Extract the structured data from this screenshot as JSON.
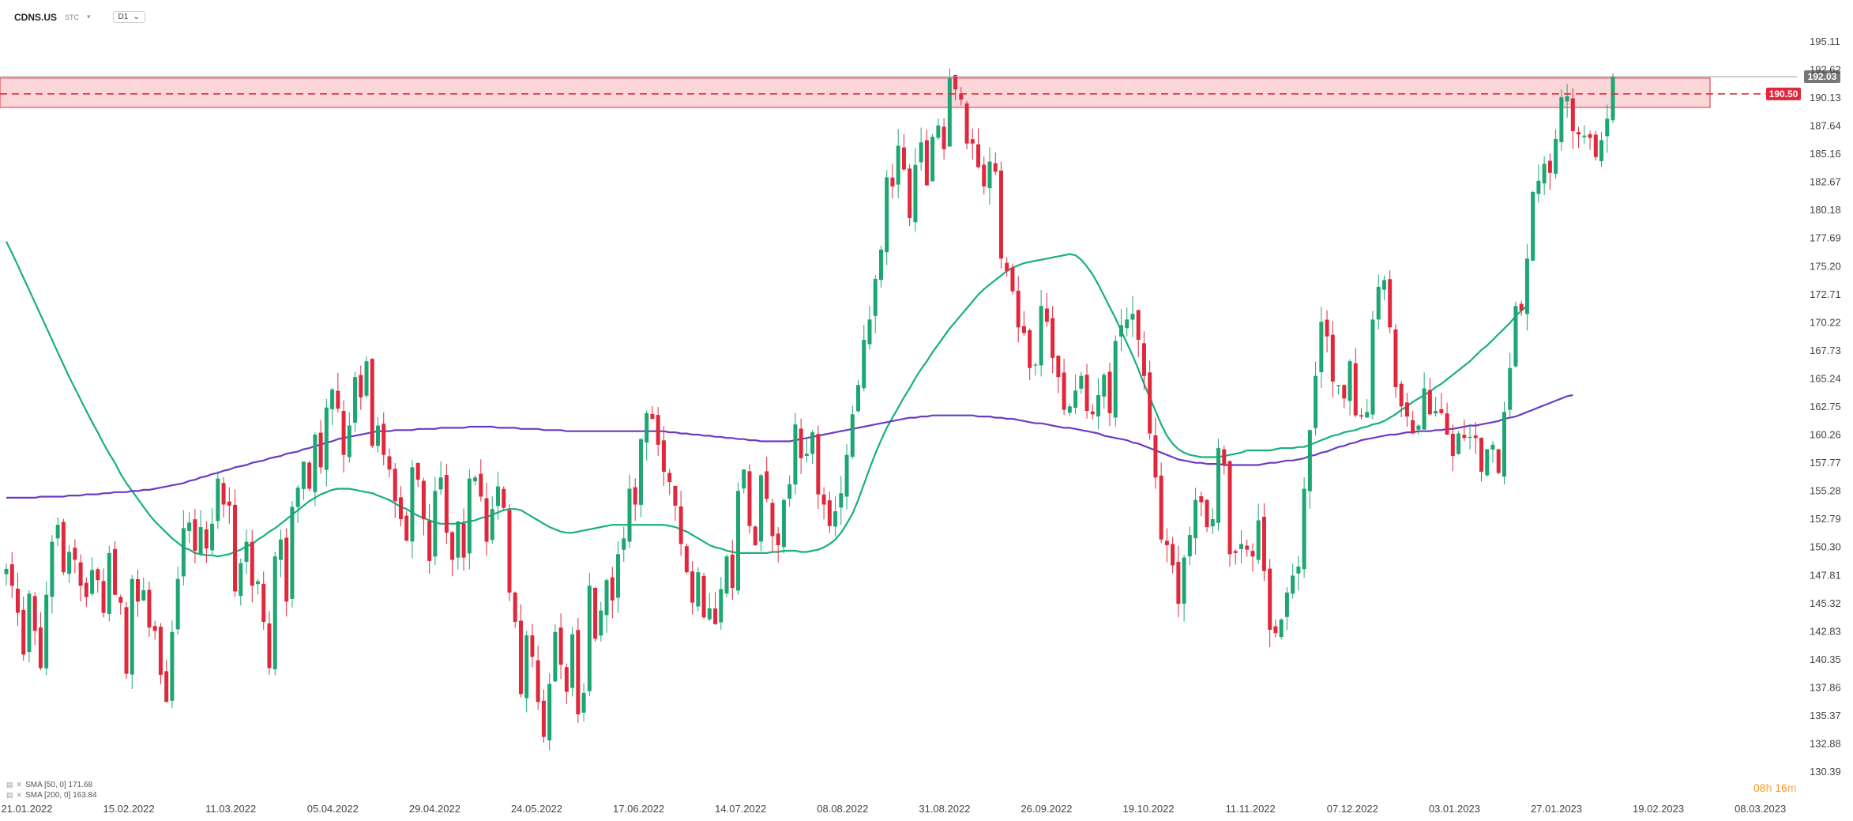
{
  "header": {
    "symbol": "CDNS.US",
    "exchange": "STC",
    "timeframe": "D1"
  },
  "legend": {
    "sma50": "SMA [50, 0] 171.68",
    "sma200": "SMA [200, 0] 163.84"
  },
  "timer": {
    "hours": "08",
    "h": "h",
    "minutes": "16",
    "m": "m"
  },
  "colors": {
    "bull": "#1ea672",
    "bear": "#e0283c",
    "sma50": "#17b07e",
    "sma200": "#6a3bc4",
    "zone_fill": "#f8c8cc",
    "zone_stroke": "#e0283c",
    "level": "#e0283c",
    "price_tag": "#777777"
  },
  "chart_data": {
    "type": "candlestick",
    "y_ticks": [
      "195.11",
      "192.62",
      "190.13",
      "187.64",
      "185.16",
      "182.67",
      "180.18",
      "177.69",
      "175.20",
      "172.71",
      "170.22",
      "167.73",
      "165.24",
      "162.75",
      "160.26",
      "157.77",
      "155.28",
      "152.79",
      "150.30",
      "147.81",
      "145.32",
      "142.83",
      "140.35",
      "137.86",
      "135.37",
      "132.88",
      "130.39"
    ],
    "ylim": [
      130.39,
      196.4
    ],
    "x_ticks": [
      "21.01.2022",
      "15.02.2022",
      "11.03.2022",
      "05.04.2022",
      "29.04.2022",
      "24.05.2022",
      "17.06.2022",
      "14.07.2022",
      "08.08.2022",
      "31.08.2022",
      "26.09.2022",
      "19.10.2022",
      "11.11.2022",
      "07.12.2022",
      "03.01.2023",
      "27.01.2023",
      "19.02.2023",
      "08.03.2023"
    ],
    "current_price": {
      "value": 192.03,
      "label": "192.03"
    },
    "resistance_level": {
      "value": 190.5,
      "label": "190.50"
    },
    "resistance_zone": [
      189.3,
      191.9
    ],
    "start_date": "2022-01-21",
    "num_bars": 273,
    "close": [
      148.4,
      146.9,
      144.5,
      140.8,
      146.2,
      142.9,
      139.6,
      146.1,
      150.8,
      152.3,
      148.1,
      149.9,
      149.2,
      146.9,
      145.9,
      148.3,
      147.4,
      144.5,
      149.8,
      146.1,
      145.4,
      139.1,
      147.5,
      145.5,
      146.5,
      143.2,
      142.9,
      139.0,
      136.6,
      142.8,
      147.5,
      152.0,
      152.5,
      150.0,
      152.1,
      150.2,
      152.4,
      156.4,
      154.1,
      154.0,
      146.4,
      148.9,
      150.8,
      146.9,
      147.3,
      143.7,
      139.6,
      149.5,
      151.0,
      145.5,
      153.9,
      155.6,
      157.9,
      155.5,
      160.3,
      157.4,
      162.7,
      164.3,
      162.6,
      158.5,
      161.1,
      165.4,
      163.6,
      166.8,
      159.3,
      161.1,
      158.5,
      157.2,
      154.4,
      152.8,
      150.9,
      157.4,
      156.3,
      152.8,
      149.1,
      155.3,
      156.5,
      151.6,
      149.2,
      152.6,
      149.4,
      156.4,
      156.5,
      154.8,
      150.8,
      153.7,
      155.7,
      153.8,
      146.3,
      143.7,
      137.3,
      142.5,
      140.6,
      136.6,
      133.5,
      138.2,
      142.8,
      139.9,
      137.5,
      142.6,
      135.5,
      137.4,
      146.9,
      142.2,
      144.7,
      147.4,
      145.6,
      149.7,
      151.1,
      155.5,
      154.1,
      159.9,
      162.2,
      161.7,
      159.4,
      157.0,
      156.1,
      154.0,
      150.6,
      148.1,
      145.4,
      148.1,
      144.1,
      144.9,
      143.5,
      146.6,
      149.5,
      146.7,
      155.3,
      157.2,
      152.2,
      150.5,
      156.7,
      154.6,
      151.3,
      150.5,
      154.5,
      155.9,
      161.2,
      158.2,
      158.6,
      160.5,
      155.0,
      154.1,
      152.2,
      153.5,
      155.1,
      158.5,
      162.1,
      164.7,
      168.7,
      170.5,
      174.1,
      176.7,
      183.1,
      182.3,
      185.9,
      183.8,
      179.5,
      184.2,
      186.2,
      182.4,
      186.7,
      187.7,
      185.6,
      191.9,
      190.9,
      190.0,
      186.1,
      186.1,
      184.0,
      182.3,
      184.5,
      183.6,
      175.9,
      174.8,
      173.0,
      169.8,
      169.3,
      166.2,
      166.5,
      171.7,
      170.3,
      167.1,
      165.4,
      162.5,
      162.8,
      164.2,
      165.5,
      162.4,
      162.1,
      163.8,
      165.6,
      162.2,
      168.6,
      170.0,
      170.5,
      171.0,
      168.7,
      165.5,
      160.4,
      156.5,
      151.0,
      150.5,
      148.7,
      145.3,
      149.4,
      151.4,
      154.5,
      154.3,
      152.1,
      152.8,
      159.1,
      157.6,
      149.7,
      149.8,
      150.6,
      150.1,
      149.5,
      152.7,
      148.2,
      143.0,
      142.7,
      143.9,
      146.3,
      147.8,
      148.6,
      155.5,
      160.7,
      165.5,
      170.3,
      169.0,
      165.0,
      164.7,
      163.5,
      166.8,
      162.0,
      161.9,
      162.3,
      170.5,
      173.4,
      174.0,
      169.8,
      164.5,
      162.8,
      161.9,
      160.4,
      161.1,
      164.4,
      162.1,
      162.4,
      162.2,
      160.3,
      158.4,
      160.4,
      160.0,
      160.1,
      160.0,
      157.0,
      159.0,
      159.4,
      156.9,
      162.3,
      166.2,
      171.7,
      171.3,
      175.9,
      181.8,
      182.8,
      184.3,
      183.5,
      186.5,
      190.2,
      190.3,
      187.2,
      186.9,
      186.8,
      186.6,
      184.9,
      186.4,
      188.3,
      192.0
    ],
    "series": [
      {
        "name": "SMA [50, 0] 171.68",
        "values": [
          177.4,
          176.4,
          175.3,
          174.2,
          173.1,
          172.0,
          170.9,
          169.8,
          168.7,
          167.6,
          166.5,
          165.4,
          164.4,
          163.4,
          162.4,
          161.4,
          160.5,
          159.5,
          158.6,
          157.8,
          156.8,
          156.0,
          155.3,
          154.6,
          153.9,
          153.2,
          152.6,
          152.1,
          151.6,
          151.1,
          150.7,
          150.3,
          150.1,
          149.8,
          149.7,
          149.6,
          149.6,
          149.5,
          149.6,
          149.7,
          149.9,
          150.1,
          150.4,
          150.6,
          151.0,
          151.3,
          151.7,
          152.0,
          152.4,
          152.8,
          153.2,
          153.6,
          154.0,
          154.4,
          154.7,
          155.0,
          155.2,
          155.4,
          155.5,
          155.5,
          155.5,
          155.4,
          155.3,
          155.2,
          155.1,
          154.9,
          154.7,
          154.5,
          154.2,
          153.9,
          153.7,
          153.4,
          153.1,
          152.9,
          152.7,
          152.5,
          152.4,
          152.4,
          152.4,
          152.4,
          152.5,
          152.6,
          152.7,
          152.9,
          153.0,
          153.2,
          153.4,
          153.6,
          153.7,
          153.7,
          153.6,
          153.3,
          153.0,
          152.7,
          152.4,
          152.1,
          151.9,
          151.7,
          151.6,
          151.6,
          151.7,
          151.8,
          151.9,
          152.0,
          152.1,
          152.2,
          152.3,
          152.3,
          152.3,
          152.3,
          152.3,
          152.3,
          152.3,
          152.3,
          152.3,
          152.3,
          152.2,
          152.1,
          151.9,
          151.7,
          151.4,
          151.1,
          150.8,
          150.5,
          150.3,
          150.2,
          150.0,
          149.9,
          149.8,
          149.8,
          149.8,
          149.8,
          149.8,
          149.8,
          149.9,
          149.9,
          150.0,
          150.0,
          150.0,
          149.9,
          149.9,
          150.0,
          150.1,
          150.3,
          150.6,
          151.0,
          151.6,
          152.4,
          153.3,
          154.5,
          155.9,
          157.3,
          158.6,
          159.8,
          160.9,
          161.8,
          162.7,
          163.6,
          164.4,
          165.3,
          166.1,
          166.8,
          167.6,
          168.3,
          169.0,
          169.7,
          170.3,
          170.9,
          171.5,
          172.1,
          172.7,
          173.2,
          173.6,
          174.0,
          174.4,
          174.8,
          175.1,
          175.3,
          175.5,
          175.6,
          175.7,
          175.8,
          175.9,
          176.0,
          176.1,
          176.2,
          176.3,
          176.2,
          175.8,
          175.2,
          174.5,
          173.6,
          172.6,
          171.6,
          170.6,
          169.5,
          168.4,
          167.3,
          166.1,
          164.8,
          163.6,
          162.4,
          161.2,
          160.2,
          159.5,
          159.0,
          158.7,
          158.5,
          158.4,
          158.3,
          158.3,
          158.3,
          158.3,
          158.4,
          158.5,
          158.6,
          158.7,
          158.9,
          158.9,
          158.9,
          158.9,
          158.9,
          159.0,
          159.1,
          159.1,
          159.1,
          159.2,
          159.2,
          159.4,
          159.6,
          159.8,
          160.0,
          160.2,
          160.3,
          160.5,
          160.6,
          160.7,
          160.9,
          161.0,
          161.2,
          161.3,
          161.5,
          161.8,
          162.1,
          162.5,
          162.8,
          163.2,
          163.5,
          163.8,
          164.1,
          164.5,
          164.8,
          165.2,
          165.6,
          166.0,
          166.4,
          166.8,
          167.3,
          167.8,
          168.2,
          168.7,
          169.2,
          169.7,
          170.2,
          170.8,
          171.3,
          171.7
        ]
      },
      {
        "name": "SMA [200, 0] 163.84",
        "values": [
          154.7,
          154.7,
          154.7,
          154.7,
          154.7,
          154.7,
          154.8,
          154.8,
          154.8,
          154.8,
          154.8,
          154.9,
          154.9,
          154.9,
          155.0,
          155.0,
          155.0,
          155.1,
          155.1,
          155.2,
          155.2,
          155.2,
          155.3,
          155.3,
          155.4,
          155.4,
          155.5,
          155.6,
          155.7,
          155.8,
          155.9,
          156.0,
          156.2,
          156.3,
          156.5,
          156.6,
          156.8,
          156.9,
          157.1,
          157.2,
          157.4,
          157.5,
          157.6,
          157.8,
          157.9,
          158.0,
          158.2,
          158.3,
          158.4,
          158.6,
          158.7,
          158.8,
          159.0,
          159.1,
          159.3,
          159.4,
          159.6,
          159.7,
          159.9,
          160.0,
          160.1,
          160.2,
          160.3,
          160.4,
          160.5,
          160.6,
          160.6,
          160.6,
          160.7,
          160.7,
          160.7,
          160.7,
          160.8,
          160.8,
          160.8,
          160.8,
          160.9,
          160.9,
          160.9,
          160.9,
          160.9,
          161.0,
          161.0,
          161.0,
          161.0,
          161.0,
          160.9,
          160.9,
          160.9,
          160.9,
          160.8,
          160.8,
          160.8,
          160.8,
          160.7,
          160.7,
          160.7,
          160.7,
          160.6,
          160.6,
          160.6,
          160.6,
          160.6,
          160.6,
          160.6,
          160.6,
          160.6,
          160.6,
          160.6,
          160.6,
          160.6,
          160.6,
          160.6,
          160.6,
          160.6,
          160.6,
          160.5,
          160.5,
          160.4,
          160.4,
          160.3,
          160.3,
          160.2,
          160.2,
          160.1,
          160.1,
          160.0,
          160.0,
          159.9,
          159.9,
          159.8,
          159.8,
          159.7,
          159.7,
          159.7,
          159.7,
          159.7,
          159.7,
          159.8,
          159.9,
          160.0,
          160.1,
          160.2,
          160.3,
          160.4,
          160.5,
          160.6,
          160.7,
          160.8,
          160.9,
          161.0,
          161.1,
          161.2,
          161.3,
          161.4,
          161.5,
          161.6,
          161.7,
          161.8,
          161.8,
          161.9,
          161.9,
          162.0,
          162.0,
          162.0,
          162.0,
          162.0,
          162.0,
          162.0,
          162.0,
          161.9,
          161.9,
          161.9,
          161.8,
          161.8,
          161.7,
          161.7,
          161.6,
          161.5,
          161.4,
          161.3,
          161.3,
          161.2,
          161.1,
          161.0,
          160.9,
          160.9,
          160.8,
          160.7,
          160.6,
          160.5,
          160.4,
          160.2,
          160.1,
          160.0,
          159.9,
          159.8,
          159.6,
          159.5,
          159.3,
          159.1,
          158.9,
          158.7,
          158.5,
          158.3,
          158.1,
          158.0,
          157.9,
          157.8,
          157.8,
          157.7,
          157.7,
          157.7,
          157.6,
          157.6,
          157.6,
          157.6,
          157.6,
          157.6,
          157.6,
          157.7,
          157.8,
          157.8,
          157.9,
          158.0,
          158.0,
          158.1,
          158.2,
          158.4,
          158.5,
          158.7,
          158.8,
          159.0,
          159.2,
          159.3,
          159.5,
          159.6,
          159.8,
          159.9,
          160.0,
          160.1,
          160.2,
          160.3,
          160.3,
          160.4,
          160.5,
          160.5,
          160.6,
          160.6,
          160.6,
          160.7,
          160.7,
          160.8,
          160.8,
          160.9,
          161.0,
          161.1,
          161.1,
          161.2,
          161.3,
          161.4,
          161.5,
          161.7,
          161.8,
          161.9,
          162.1,
          162.3,
          162.5,
          162.7,
          162.9,
          163.1,
          163.3,
          163.5,
          163.7,
          163.8
        ]
      }
    ]
  }
}
